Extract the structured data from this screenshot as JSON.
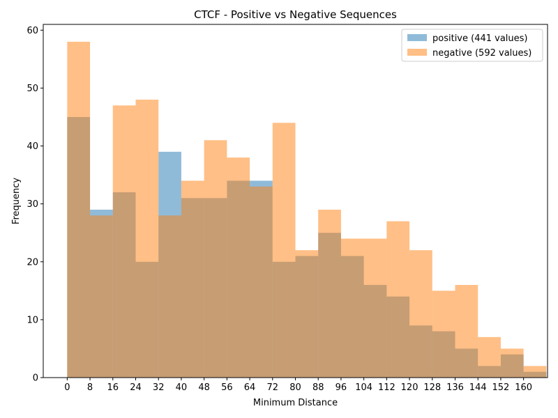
{
  "chart_data": {
    "type": "bar",
    "title": "CTCF - Positive vs Negative Sequences",
    "xlabel": "Minimum Distance",
    "ylabel": "Frequency",
    "bin_width": 8,
    "bin_starts": [
      0,
      8,
      16,
      24,
      32,
      40,
      48,
      56,
      64,
      72,
      80,
      88,
      96,
      104,
      112,
      120,
      128,
      136,
      144,
      152,
      160
    ],
    "x_ticks": [
      0,
      8,
      16,
      24,
      32,
      40,
      48,
      56,
      64,
      72,
      80,
      88,
      96,
      104,
      112,
      120,
      128,
      136,
      144,
      152,
      160
    ],
    "y_ticks": [
      0,
      10,
      20,
      30,
      40,
      50,
      60
    ],
    "xlim": [
      -8.4,
      168.4
    ],
    "ylim": [
      0,
      61
    ],
    "grid": false,
    "legend_position": "top-right",
    "series": [
      {
        "name": "positive (441 values)",
        "color": "#1f77b4",
        "alpha": 0.5,
        "values": [
          45,
          29,
          32,
          20,
          39,
          31,
          31,
          34,
          34,
          20,
          21,
          25,
          21,
          16,
          14,
          9,
          8,
          5,
          2,
          4,
          1
        ]
      },
      {
        "name": "negative (592 values)",
        "color": "#ff7f0e",
        "alpha": 0.5,
        "values": [
          58,
          28,
          47,
          48,
          28,
          34,
          41,
          38,
          33,
          44,
          22,
          29,
          24,
          24,
          27,
          22,
          15,
          16,
          7,
          5,
          2
        ]
      }
    ]
  }
}
